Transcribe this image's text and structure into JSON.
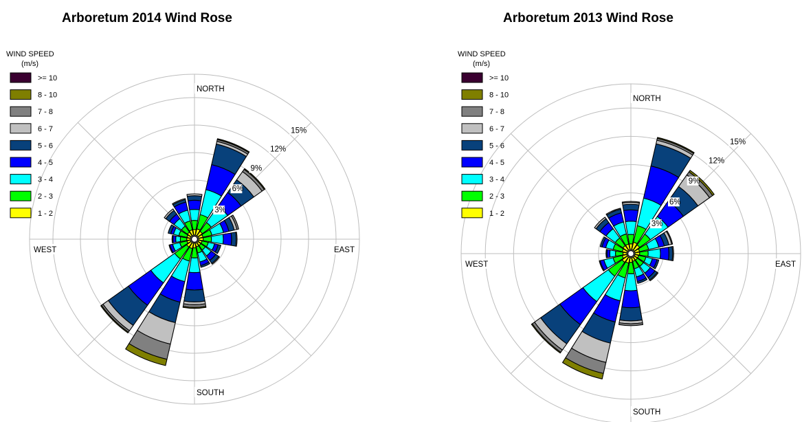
{
  "chart_data": [
    {
      "type": "wind-rose",
      "title": "Arboretum 2014 Wind Rose",
      "legend": {
        "title": "WIND SPEED",
        "unit": "(m/s)",
        "bins": [
          {
            "label": ">= 10",
            "color": "#3a0030"
          },
          {
            "label": "8 - 10",
            "color": "#7f7f00"
          },
          {
            "label": "7 - 8",
            "color": "#808080"
          },
          {
            "label": "6 - 7",
            "color": "#c0c0c0"
          },
          {
            "label": "5 - 6",
            "color": "#08417b"
          },
          {
            "label": "4 - 5",
            "color": "#0000ff"
          },
          {
            "label": "3 - 4",
            "color": "#00ffff"
          },
          {
            "label": "2 - 3",
            "color": "#00ff00"
          },
          {
            "label": "1 - 2",
            "color": "#ffff00"
          }
        ]
      },
      "direction_labels": [
        "NORTH",
        "EAST",
        "SOUTH",
        "WEST"
      ],
      "ring_labels": [
        "3%",
        "6%",
        "9%",
        "12%",
        "15%"
      ],
      "rings_percent": [
        3,
        6,
        9,
        12,
        15
      ],
      "sector_order": [
        "N",
        "NNE",
        "NE",
        "ENE",
        "E",
        "ESE",
        "SE",
        "SSE",
        "S",
        "SSW",
        "SW",
        "WSW",
        "W",
        "WNW",
        "NW",
        "NNW"
      ],
      "series_order": [
        "1 - 2",
        "2 - 3",
        "3 - 4",
        "4 - 5",
        "5 - 6",
        "6 - 7",
        "7 - 8",
        "8 - 10",
        ">= 10"
      ],
      "sector_frequencies_percent": [
        [
          0.6,
          1.0,
          1.2,
          1.0,
          0.5,
          0.2,
          0.0,
          0.0,
          0.0
        ],
        [
          0.7,
          1.6,
          2.8,
          2.8,
          2.3,
          0.3,
          0.2,
          0.1,
          0.0
        ],
        [
          0.6,
          1.2,
          2.2,
          1.8,
          1.7,
          1.1,
          0.3,
          0.1,
          0.0
        ],
        [
          0.5,
          1.0,
          1.3,
          0.6,
          0.6,
          0.3,
          0.2,
          0.0,
          0.0
        ],
        [
          0.5,
          0.9,
          1.3,
          0.9,
          0.5,
          0.1,
          0.0,
          0.0,
          0.0
        ],
        [
          0.4,
          0.7,
          0.7,
          0.4,
          0.3,
          0.0,
          0.0,
          0.0,
          0.0
        ],
        [
          0.4,
          0.6,
          0.8,
          0.6,
          0.4,
          0.1,
          0.0,
          0.0,
          0.0
        ],
        [
          0.4,
          0.7,
          1.0,
          0.4,
          0.2,
          0.0,
          0.0,
          0.0,
          0.0
        ],
        [
          0.5,
          1.1,
          1.6,
          1.9,
          1.3,
          0.3,
          0.3,
          0.1,
          0.0
        ],
        [
          0.6,
          1.4,
          2.3,
          2.3,
          2.3,
          2.4,
          1.7,
          0.7,
          0.0
        ],
        [
          0.6,
          1.6,
          3.2,
          3.0,
          2.7,
          0.7,
          0.2,
          0.1,
          0.0
        ],
        [
          0.4,
          0.8,
          0.8,
          0.3,
          0.1,
          0.0,
          0.0,
          0.0,
          0.0
        ],
        [
          0.4,
          0.7,
          0.5,
          0.3,
          0.1,
          0.0,
          0.0,
          0.0,
          0.0
        ],
        [
          0.4,
          0.9,
          0.6,
          0.3,
          0.3,
          0.0,
          0.0,
          0.0,
          0.0
        ],
        [
          0.5,
          0.8,
          1.0,
          0.6,
          0.5,
          0.2,
          0.0,
          0.0,
          0.0
        ],
        [
          0.6,
          1.0,
          1.2,
          0.9,
          0.3,
          0.1,
          0.0,
          0.0,
          0.0
        ]
      ]
    },
    {
      "type": "wind-rose",
      "title": "Arboretum 2013 Wind Rose",
      "legend": {
        "title": "WIND SPEED",
        "unit": "(m/s)",
        "bins": [
          {
            "label": ">= 10",
            "color": "#3a0030"
          },
          {
            "label": "8 - 10",
            "color": "#7f7f00"
          },
          {
            "label": "7 - 8",
            "color": "#808080"
          },
          {
            "label": "6 - 7",
            "color": "#c0c0c0"
          },
          {
            "label": "5 - 6",
            "color": "#08417b"
          },
          {
            "label": "4 - 5",
            "color": "#0000ff"
          },
          {
            "label": "3 - 4",
            "color": "#00ffff"
          },
          {
            "label": "2 - 3",
            "color": "#00ff00"
          },
          {
            "label": "1 - 2",
            "color": "#ffff00"
          }
        ]
      },
      "direction_labels": [
        "NORTH",
        "EAST",
        "SOUTH",
        "WEST"
      ],
      "ring_labels": [
        "3%",
        "6%",
        "9%",
        "12%",
        "15%"
      ],
      "rings_percent": [
        3,
        6,
        9,
        12,
        15
      ],
      "sector_order": [
        "N",
        "NNE",
        "NE",
        "ENE",
        "E",
        "ESE",
        "SE",
        "SSE",
        "S",
        "SSW",
        "SW",
        "WSW",
        "W",
        "WNW",
        "NW",
        "NNW"
      ],
      "series_order": [
        "1 - 2",
        "2 - 3",
        "3 - 4",
        "4 - 5",
        "5 - 6",
        "6 - 7",
        "7 - 8",
        "8 - 10",
        ">= 10"
      ],
      "sector_frequencies_percent": [
        [
          0.6,
          1.0,
          1.4,
          1.2,
          0.6,
          0.2,
          0.1,
          0.0,
          0.0
        ],
        [
          0.8,
          1.8,
          3.0,
          3.5,
          2.4,
          0.4,
          0.2,
          0.1,
          0.0
        ],
        [
          0.7,
          1.4,
          2.3,
          2.0,
          1.9,
          1.5,
          0.4,
          0.2,
          0.0
        ],
        [
          0.5,
          1.0,
          1.1,
          0.6,
          0.5,
          0.3,
          0.1,
          0.0,
          0.0
        ],
        [
          0.5,
          0.9,
          1.3,
          0.9,
          0.4,
          0.1,
          0.0,
          0.0,
          0.0
        ],
        [
          0.4,
          0.8,
          0.7,
          0.5,
          0.2,
          0.0,
          0.0,
          0.0,
          0.0
        ],
        [
          0.4,
          0.8,
          0.9,
          0.6,
          0.3,
          0.1,
          0.0,
          0.0,
          0.0
        ],
        [
          0.4,
          0.8,
          0.9,
          0.5,
          0.2,
          0.0,
          0.0,
          0.0,
          0.0
        ],
        [
          0.5,
          1.2,
          1.8,
          1.8,
          1.4,
          0.3,
          0.2,
          0.0,
          0.0
        ],
        [
          0.6,
          1.6,
          2.5,
          2.3,
          2.3,
          2.1,
          1.2,
          0.6,
          0.0
        ],
        [
          0.7,
          1.8,
          3.3,
          3.0,
          2.5,
          0.8,
          0.3,
          0.1,
          0.0
        ],
        [
          0.5,
          1.0,
          1.0,
          0.4,
          0.1,
          0.0,
          0.0,
          0.0,
          0.0
        ],
        [
          0.4,
          0.8,
          0.6,
          0.3,
          0.1,
          0.0,
          0.0,
          0.0,
          0.0
        ],
        [
          0.5,
          1.0,
          0.8,
          0.4,
          0.2,
          0.0,
          0.0,
          0.0,
          0.0
        ],
        [
          0.6,
          1.0,
          1.2,
          0.8,
          0.5,
          0.2,
          0.0,
          0.0,
          0.0
        ],
        [
          0.6,
          1.1,
          1.3,
          1.0,
          0.4,
          0.1,
          0.0,
          0.0,
          0.0
        ]
      ]
    }
  ]
}
